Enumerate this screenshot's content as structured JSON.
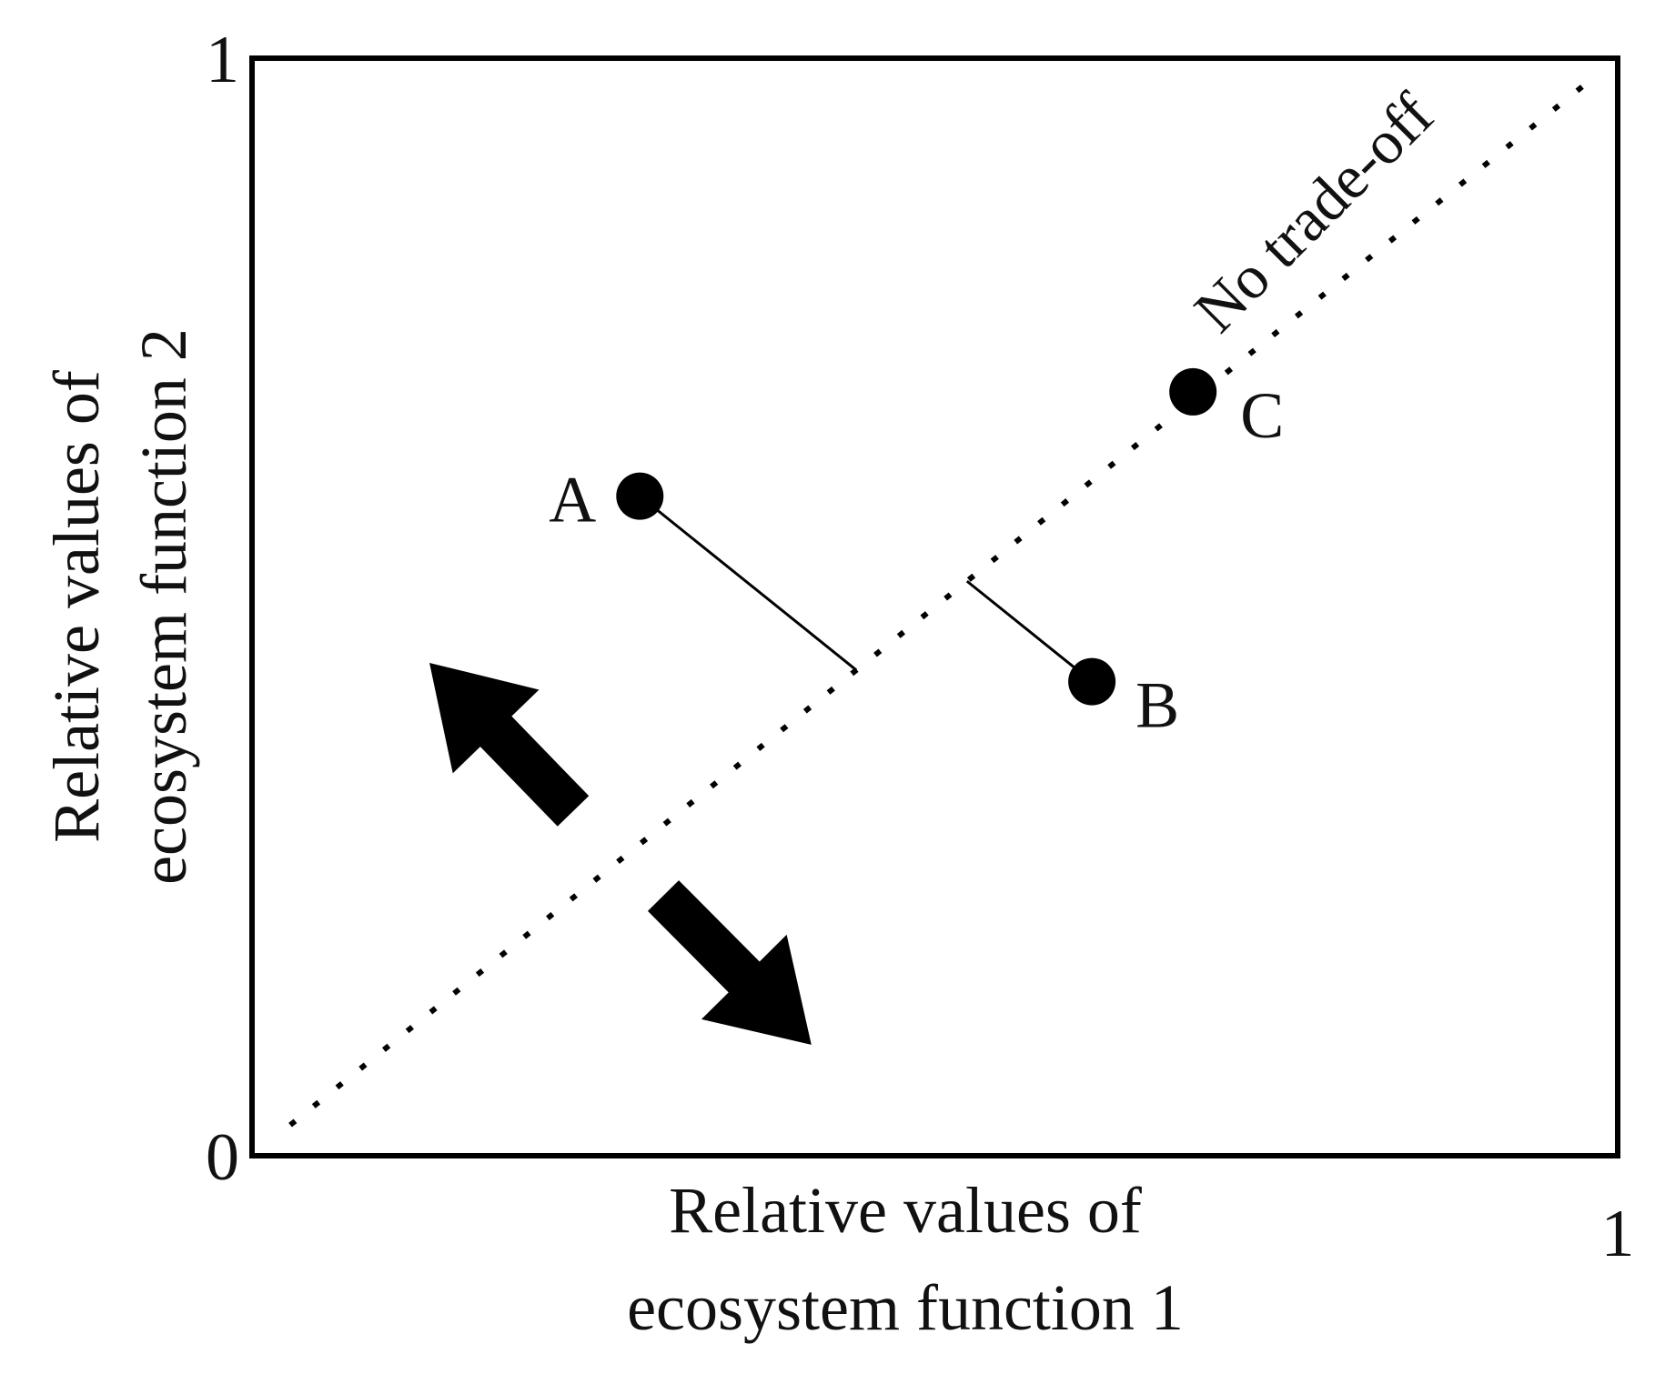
{
  "chart_data": {
    "type": "scatter",
    "x_label": [
      "Relative values of",
      "ecosystem function 1"
    ],
    "y_label": [
      "Relative values of",
      "ecosystem function 2"
    ],
    "annotation": "No trade-off",
    "xlim": [
      0,
      1
    ],
    "ylim": [
      0,
      1
    ],
    "xticks": [
      1
    ],
    "yticks": [
      0,
      1
    ],
    "series": [
      {
        "labels": [
          "A",
          "B",
          "C"
        ],
        "x": [
          0.284,
          0.615,
          0.689
        ],
        "values": [
          0.601,
          0.432,
          0.696
        ],
        "color": "#000000"
      }
    ]
  }
}
